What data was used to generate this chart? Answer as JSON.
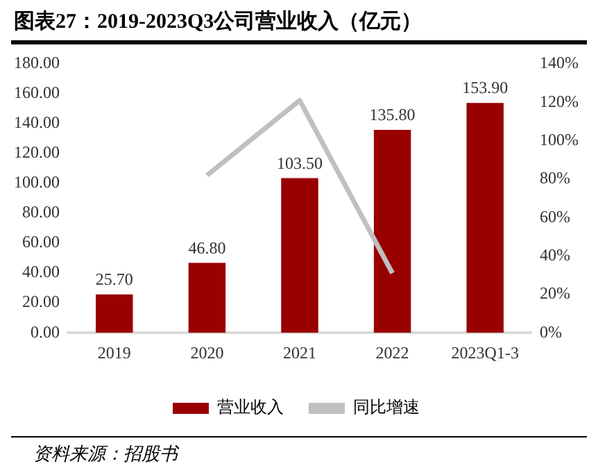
{
  "chart_data": {
    "type": "bar",
    "title": "图表27：2019-2023Q3公司营业收入（亿元）",
    "categories": [
      "2019",
      "2020",
      "2021",
      "2022",
      "2023Q1-3"
    ],
    "series": [
      {
        "name": "营业收入",
        "color": "#990000",
        "values": [
          25.7,
          46.8,
          103.5,
          135.8,
          153.9
        ],
        "value_labels": [
          "25.70",
          "46.80",
          "103.50",
          "135.80",
          "153.90"
        ]
      },
      {
        "name": "同比增速",
        "type": "line",
        "axis": "y2",
        "color": "#c0c0c0",
        "values": [
          null,
          82,
          121,
          31,
          null
        ]
      }
    ],
    "ylim": [
      0,
      180
    ],
    "yticks": [
      {
        "value": 0,
        "label": "0.00"
      },
      {
        "value": 20,
        "label": "20.00"
      },
      {
        "value": 40,
        "label": "40.00"
      },
      {
        "value": 60,
        "label": "60.00"
      },
      {
        "value": 80,
        "label": "80.00"
      },
      {
        "value": 100,
        "label": "100.00"
      },
      {
        "value": 120,
        "label": "120.00"
      },
      {
        "value": 140,
        "label": "140.00"
      },
      {
        "value": 160,
        "label": "160.00"
      },
      {
        "value": 180,
        "label": "180.00"
      }
    ],
    "y2lim": [
      0,
      140
    ],
    "y2ticks": [
      {
        "value": 0,
        "label": "0%"
      },
      {
        "value": 20,
        "label": "20%"
      },
      {
        "value": 40,
        "label": "40%"
      },
      {
        "value": 60,
        "label": "60%"
      },
      {
        "value": 80,
        "label": "80%"
      },
      {
        "value": 100,
        "label": "100%"
      },
      {
        "value": 120,
        "label": "120%"
      },
      {
        "value": 140,
        "label": "140%"
      }
    ],
    "grid": false,
    "legend": "bottom",
    "marker": "none",
    "annotations": [
      "资料来源：招股书"
    ]
  }
}
